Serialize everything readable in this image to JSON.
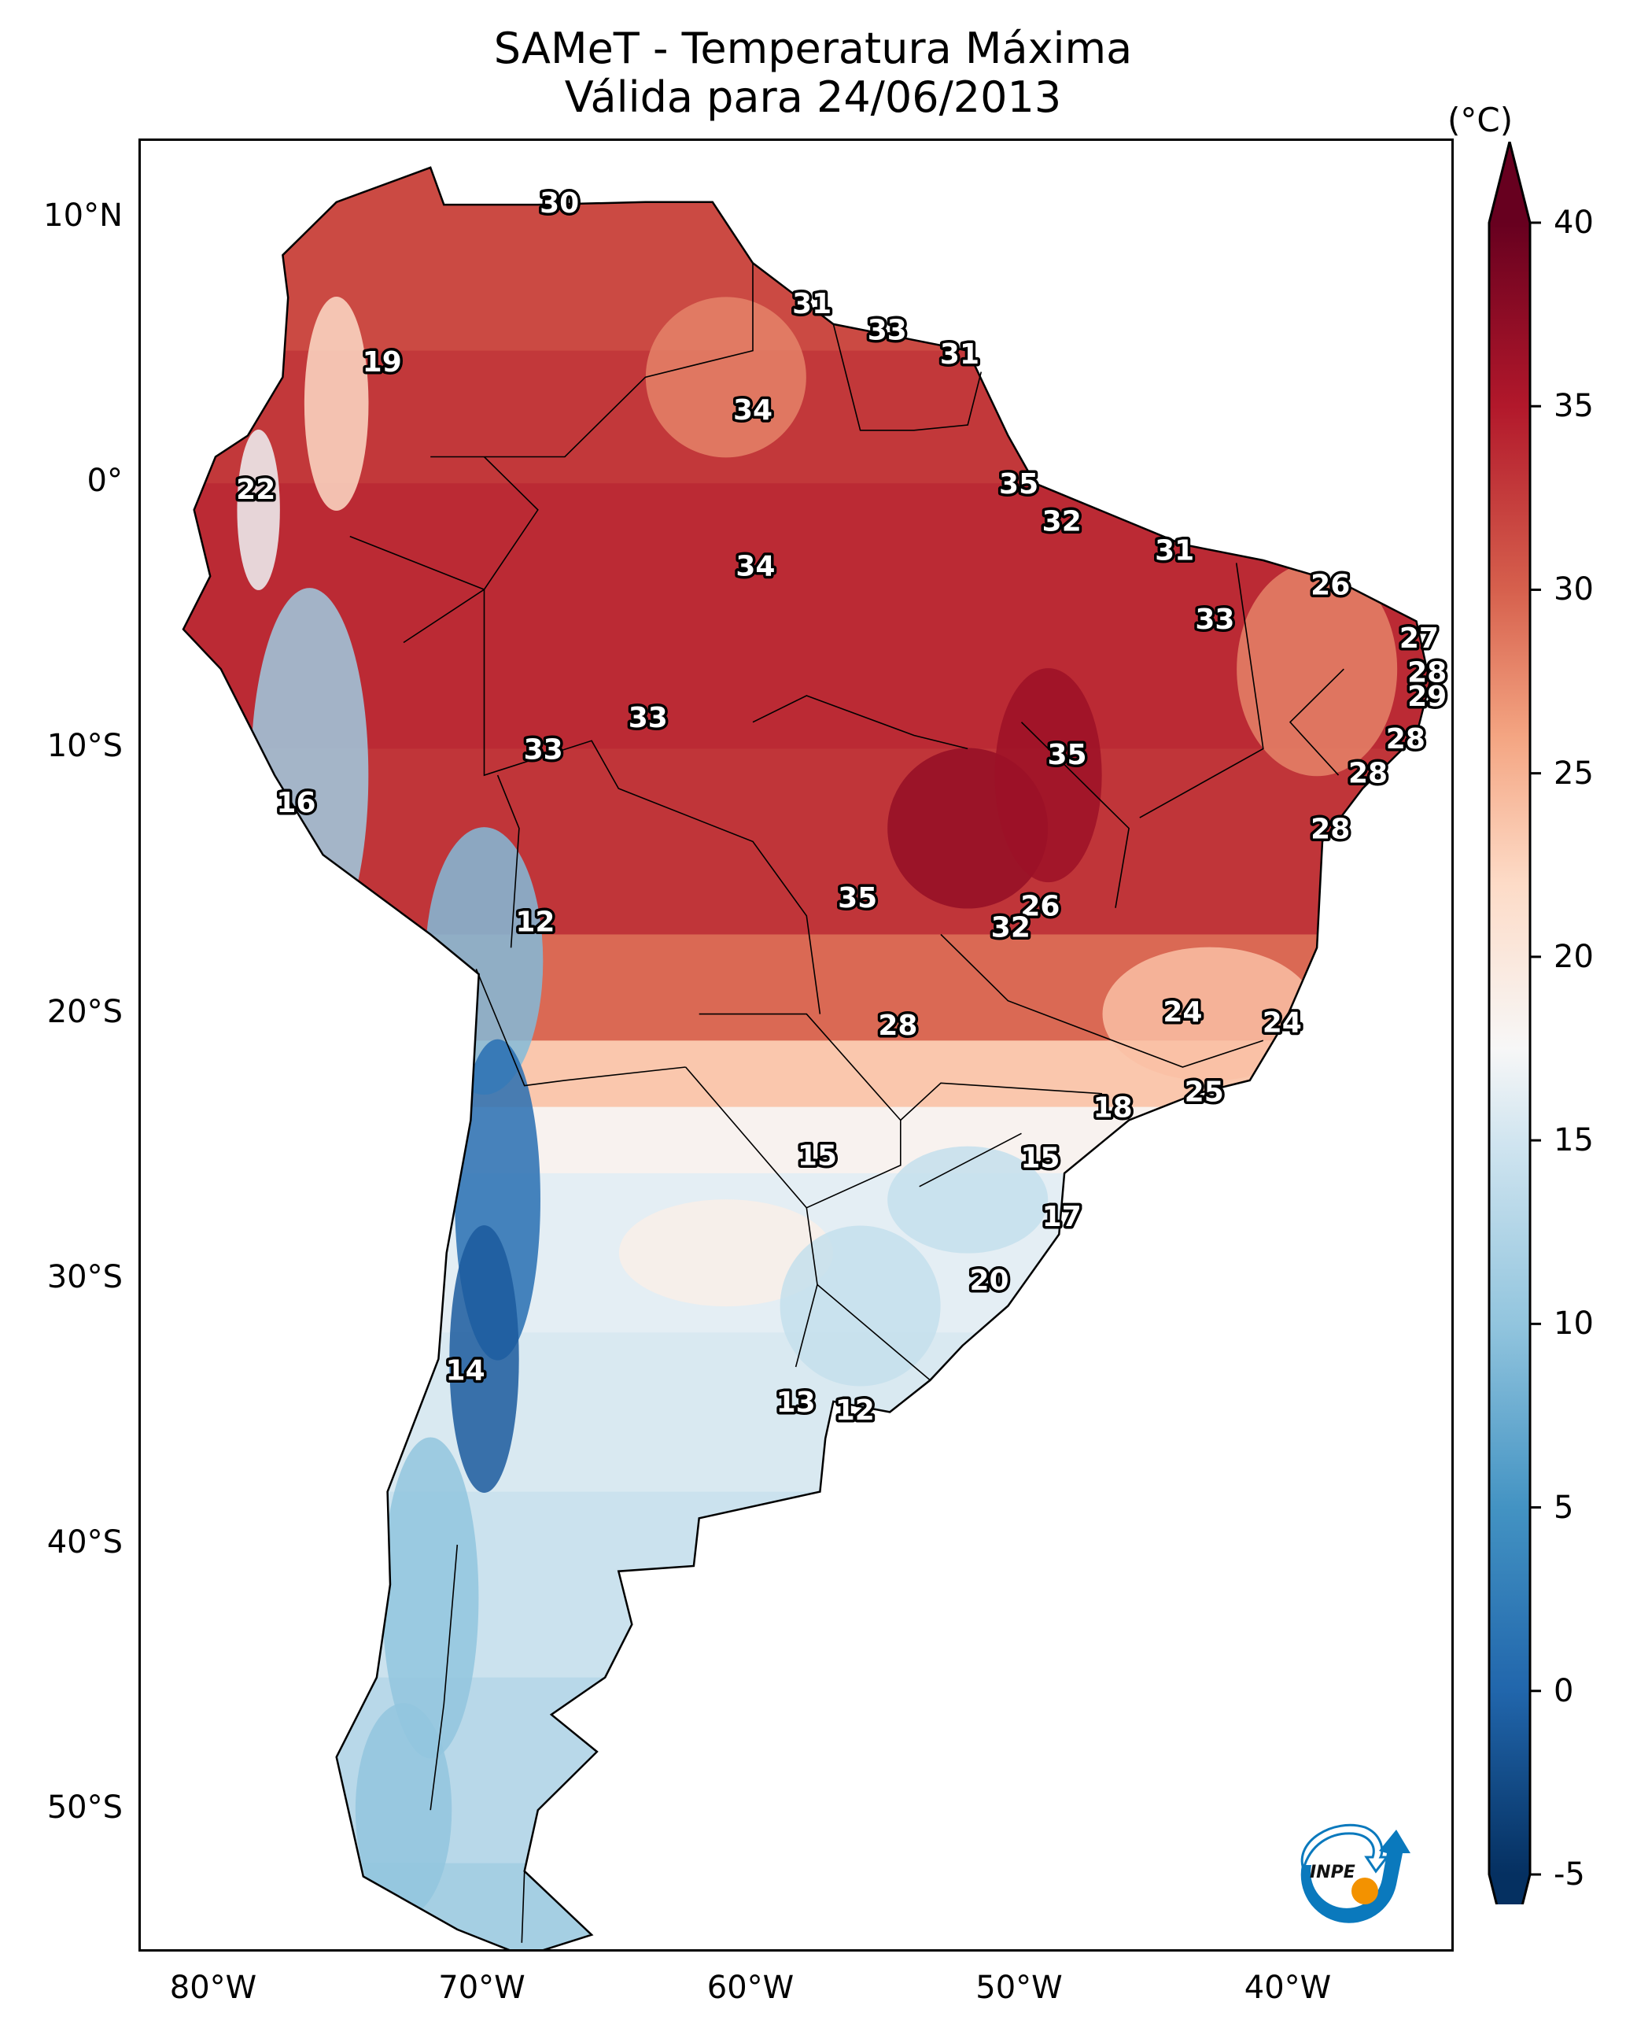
{
  "chart_data": {
    "type": "heatmap",
    "title": "SAMeT - Temperatura Máxima",
    "subtitle": "Válida para 24/06/2013",
    "colorbar": {
      "unit_label": "(°C)",
      "range": [
        -5,
        40
      ],
      "ticks": [
        40,
        35,
        30,
        25,
        20,
        15,
        10,
        5,
        0,
        -5
      ],
      "tick_labels": [
        "40",
        "35",
        "30",
        "25",
        "20",
        "15",
        "10",
        "5",
        "0",
        "-5"
      ],
      "extend": "both",
      "colormap": "RdBu_r",
      "color_stops": [
        {
          "value": -5,
          "color": "#053061"
        },
        {
          "value": 0,
          "color": "#2166ac"
        },
        {
          "value": 5,
          "color": "#4393c3"
        },
        {
          "value": 10,
          "color": "#92c5de"
        },
        {
          "value": 15,
          "color": "#d1e5f0"
        },
        {
          "value": 17.5,
          "color": "#f7f7f7"
        },
        {
          "value": 22,
          "color": "#fddbc7"
        },
        {
          "value": 26,
          "color": "#f4a582"
        },
        {
          "value": 30,
          "color": "#d6604d"
        },
        {
          "value": 35,
          "color": "#b2182b"
        },
        {
          "value": 40,
          "color": "#67001f"
        }
      ]
    },
    "x_axis": {
      "range_deg": [
        -82.8,
        -33.8
      ],
      "ticks": [
        -80,
        -70,
        -60,
        -50,
        -40
      ],
      "tick_labels": [
        "80°W",
        "70°W",
        "60°W",
        "50°W",
        "40°W"
      ]
    },
    "y_axis": {
      "range_deg": [
        -57.7,
        12.9
      ],
      "ticks": [
        10,
        0,
        -10,
        -20,
        -30,
        -40,
        -50
      ],
      "tick_labels": [
        "10°N",
        "0°",
        "10°S",
        "20°S",
        "30°S",
        "40°S",
        "50°S"
      ]
    },
    "station_values": [
      {
        "lon": -67.2,
        "lat": 10.6,
        "value": 30
      },
      {
        "lon": -73.8,
        "lat": 4.6,
        "value": 19
      },
      {
        "lon": -57.8,
        "lat": 6.8,
        "value": 31
      },
      {
        "lon": -55.0,
        "lat": 5.8,
        "value": 33
      },
      {
        "lon": -52.3,
        "lat": 4.9,
        "value": 31
      },
      {
        "lon": -60.0,
        "lat": 2.8,
        "value": 34
      },
      {
        "lon": -78.5,
        "lat": -0.2,
        "value": 22
      },
      {
        "lon": -50.1,
        "lat": 0.0,
        "value": 35
      },
      {
        "lon": -48.5,
        "lat": -1.4,
        "value": 32
      },
      {
        "lon": -44.3,
        "lat": -2.5,
        "value": 31
      },
      {
        "lon": -59.9,
        "lat": -3.1,
        "value": 34
      },
      {
        "lon": -38.5,
        "lat": -3.8,
        "value": 26
      },
      {
        "lon": -42.8,
        "lat": -5.1,
        "value": 33
      },
      {
        "lon": -35.2,
        "lat": -5.8,
        "value": 27
      },
      {
        "lon": -34.9,
        "lat": -7.1,
        "value": 28
      },
      {
        "lon": -34.9,
        "lat": -8.0,
        "value": 29
      },
      {
        "lon": -63.9,
        "lat": -8.8,
        "value": 33
      },
      {
        "lon": -67.8,
        "lat": -10.0,
        "value": 33
      },
      {
        "lon": -48.3,
        "lat": -10.2,
        "value": 35
      },
      {
        "lon": -35.7,
        "lat": -9.6,
        "value": 28
      },
      {
        "lon": -37.1,
        "lat": -10.9,
        "value": 28
      },
      {
        "lon": -77.0,
        "lat": -12.0,
        "value": 16
      },
      {
        "lon": -38.5,
        "lat": -13.0,
        "value": 28
      },
      {
        "lon": -56.1,
        "lat": -15.6,
        "value": 35
      },
      {
        "lon": -49.3,
        "lat": -15.9,
        "value": 26
      },
      {
        "lon": -50.4,
        "lat": -16.7,
        "value": 32
      },
      {
        "lon": -68.1,
        "lat": -16.5,
        "value": 12
      },
      {
        "lon": -44.0,
        "lat": -19.9,
        "value": 24
      },
      {
        "lon": -40.3,
        "lat": -20.3,
        "value": 24
      },
      {
        "lon": -54.6,
        "lat": -20.4,
        "value": 28
      },
      {
        "lon": -46.6,
        "lat": -23.5,
        "value": 18
      },
      {
        "lon": -43.2,
        "lat": -22.9,
        "value": 25
      },
      {
        "lon": -57.6,
        "lat": -25.3,
        "value": 15
      },
      {
        "lon": -49.3,
        "lat": -25.4,
        "value": 15
      },
      {
        "lon": -48.5,
        "lat": -27.6,
        "value": 17
      },
      {
        "lon": -51.2,
        "lat": -30.0,
        "value": 20
      },
      {
        "lon": -70.7,
        "lat": -33.4,
        "value": 14
      },
      {
        "lon": -58.4,
        "lat": -34.6,
        "value": 13
      },
      {
        "lon": -56.2,
        "lat": -34.9,
        "value": 12
      }
    ]
  },
  "logo": {
    "text": "INPE",
    "colors": {
      "blue": "#0a79bd",
      "orange": "#f39200"
    }
  }
}
